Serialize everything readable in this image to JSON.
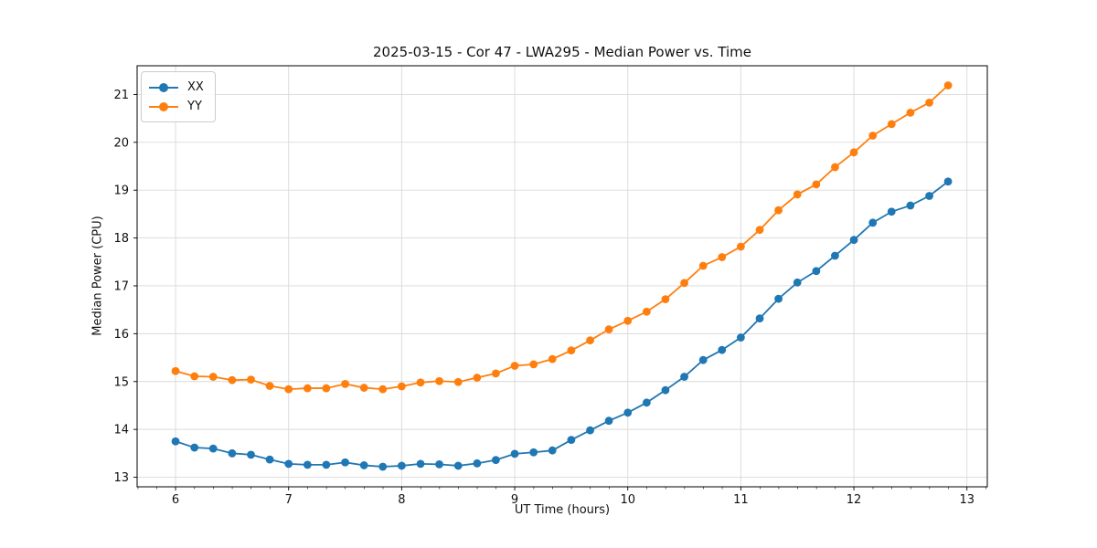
{
  "figure": {
    "background_color": "#ffffff",
    "text_color": "#111111",
    "grid_color": "#d9d9d9"
  },
  "chart_data": {
    "type": "line",
    "title": "2025-03-15 - Cor 47 - LWA295 - Median Power vs. Time",
    "xlabel": "UT Time (hours)",
    "ylabel": "Median Power (CPU)",
    "xlim": [
      5.66,
      13.18
    ],
    "ylim": [
      12.8,
      21.6
    ],
    "xticks": [
      6,
      7,
      8,
      9,
      10,
      11,
      12,
      13
    ],
    "yticks": [
      13,
      14,
      15,
      16,
      17,
      18,
      19,
      20,
      21
    ],
    "x_minor_tick_step": 0.1667,
    "grid": true,
    "legend_position": "upper-left",
    "marker": "o",
    "x": [
      6,
      6.167,
      6.333,
      6.5,
      6.667,
      6.833,
      7,
      7.167,
      7.333,
      7.5,
      7.667,
      7.833,
      8,
      8.167,
      8.333,
      8.5,
      8.667,
      8.833,
      9,
      9.167,
      9.333,
      9.5,
      9.667,
      9.833,
      10,
      10.167,
      10.333,
      10.5,
      10.667,
      10.833,
      11,
      11.167,
      11.333,
      11.5,
      11.667,
      11.833,
      12,
      12.167,
      12.333,
      12.5,
      12.667,
      12.833
    ],
    "series": [
      {
        "name": "XX",
        "color": "#1f77b4",
        "values": [
          13.75,
          13.62,
          13.6,
          13.5,
          13.47,
          13.37,
          13.28,
          13.26,
          13.26,
          13.31,
          13.25,
          13.22,
          13.24,
          13.28,
          13.27,
          13.24,
          13.29,
          13.36,
          13.49,
          13.52,
          13.56,
          13.78,
          13.98,
          14.18,
          14.35,
          14.56,
          14.82,
          15.1,
          15.45,
          15.66,
          15.92,
          16.32,
          16.73,
          17.07,
          17.31,
          17.63,
          17.96,
          18.32,
          18.55,
          18.68,
          18.88,
          19.18
        ]
      },
      {
        "name": "YY",
        "color": "#ff7f0e",
        "values": [
          15.22,
          15.11,
          15.1,
          15.03,
          15.04,
          14.91,
          14.84,
          14.86,
          14.86,
          14.95,
          14.87,
          14.84,
          14.9,
          14.98,
          15.01,
          14.99,
          15.08,
          15.17,
          15.33,
          15.36,
          15.47,
          15.65,
          15.86,
          16.09,
          16.27,
          16.46,
          16.72,
          17.06,
          17.42,
          17.6,
          17.82,
          18.17,
          18.58,
          18.91,
          19.12,
          19.48,
          19.79,
          20.14,
          20.38,
          20.62,
          20.83,
          21.19
        ]
      }
    ]
  }
}
